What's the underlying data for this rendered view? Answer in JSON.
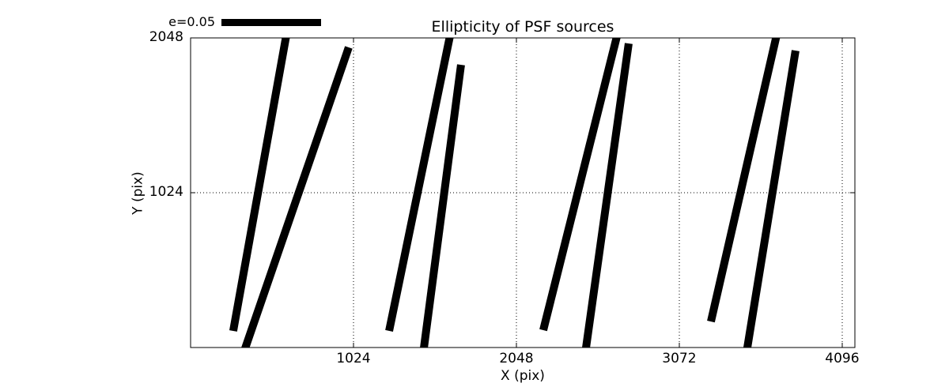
{
  "figure": {
    "background": "#ffffff",
    "foreground": "#000000"
  },
  "chart_data": {
    "type": "line",
    "subtype": "ellipticity-whisker-plot",
    "title": "Ellipticity of PSF sources",
    "xlabel": "X (pix)",
    "ylabel": "Y (pix)",
    "xlim": [
      0,
      4176
    ],
    "ylim": [
      0,
      2048
    ],
    "xticks": [
      1024,
      2048,
      3072,
      4096
    ],
    "yticks": [
      1024,
      2048
    ],
    "grid": "dotted",
    "legend": {
      "label": "e=0.05",
      "position": "top-left-above-axes"
    },
    "whisker_color": "#000000",
    "whiskers": [
      {
        "x1": 268,
        "y1": 110,
        "x2": 597,
        "y2": 2038
      },
      {
        "x1": 348,
        "y1": 10,
        "x2": 994,
        "y2": 1985
      },
      {
        "x1": 1248,
        "y1": 110,
        "x2": 1626,
        "y2": 2038
      },
      {
        "x1": 1467,
        "y1": 0,
        "x2": 1700,
        "y2": 1870
      },
      {
        "x1": 2217,
        "y1": 115,
        "x2": 2675,
        "y2": 2038
      },
      {
        "x1": 2486,
        "y1": 0,
        "x2": 2754,
        "y2": 2011
      },
      {
        "x1": 3271,
        "y1": 172,
        "x2": 3679,
        "y2": 2043
      },
      {
        "x1": 3500,
        "y1": 0,
        "x2": 3803,
        "y2": 1964
      }
    ]
  }
}
